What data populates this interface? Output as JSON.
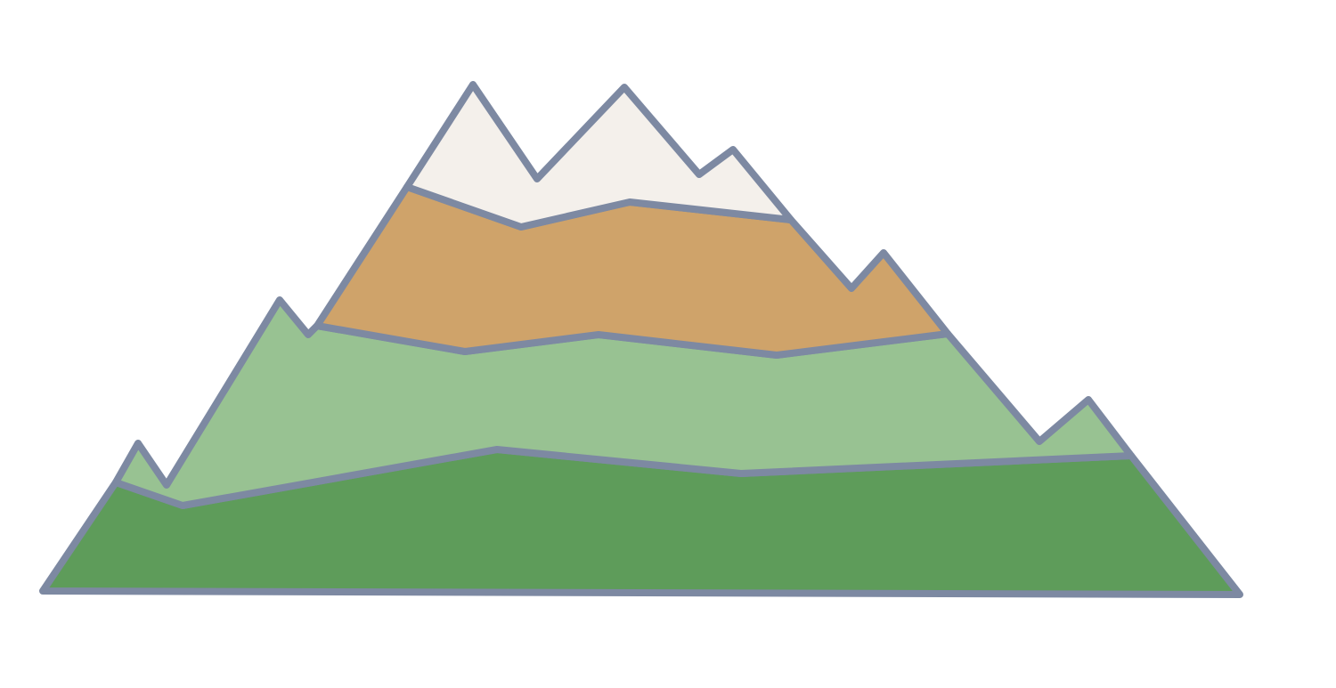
{
  "illustration": {
    "subject": "mountain-icon",
    "colors": {
      "outline": "#7d89a2",
      "snow": "#f4f0eb",
      "rock": "#cfa36a",
      "upper_slope": "#98c292",
      "lower_slope": "#5e9c5a",
      "background": "#ffffff"
    },
    "layers": [
      {
        "name": "snow-cap",
        "color_key": "snow"
      },
      {
        "name": "rock-band",
        "color_key": "rock"
      },
      {
        "name": "upper-green-band",
        "color_key": "upper_slope"
      },
      {
        "name": "lower-green-band",
        "color_key": "lower_slope"
      }
    ]
  }
}
